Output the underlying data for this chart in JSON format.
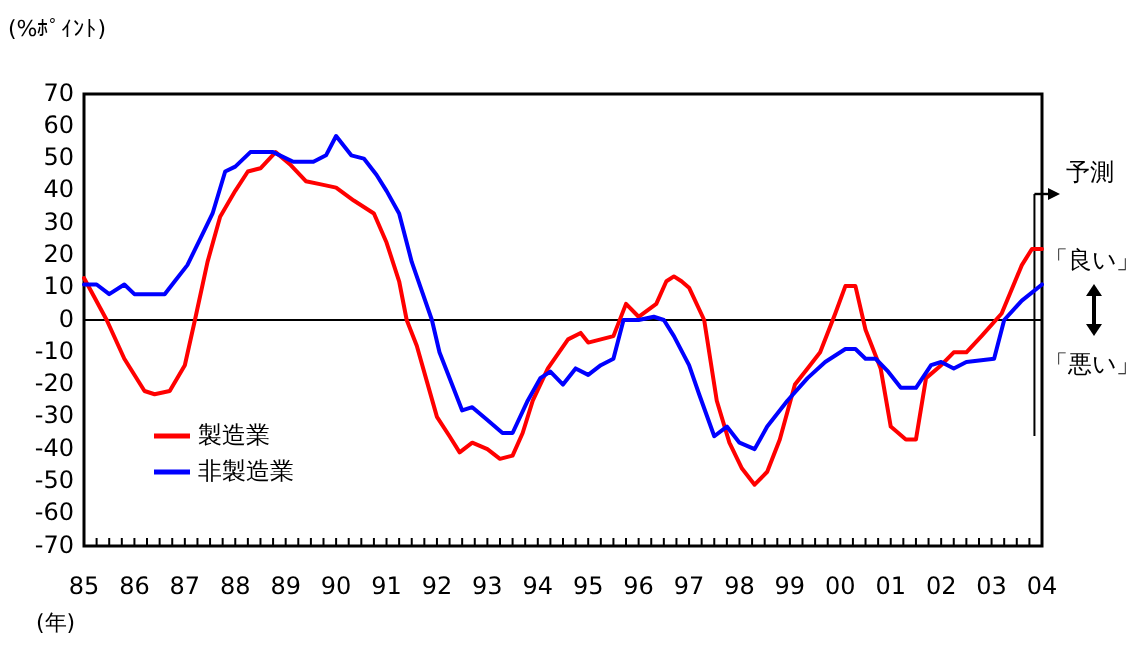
{
  "chart_data": {
    "type": "line",
    "ylabel": "(%ﾎﾟｲﾝﾄ)",
    "xlabel": "(年)",
    "xlim": [
      1985,
      2004
    ],
    "xticks": [
      {
        "value": 1985,
        "label": "85"
      },
      {
        "value": 1985.25,
        "label": null
      },
      {
        "value": 1985.5,
        "label": null
      },
      {
        "value": 1985.75,
        "label": null
      },
      {
        "value": 1986,
        "label": "86"
      },
      {
        "value": 1986.25,
        "label": null
      },
      {
        "value": 1986.5,
        "label": null
      },
      {
        "value": 1986.75,
        "label": null
      },
      {
        "value": 1987,
        "label": "87"
      },
      {
        "value": 1987.25,
        "label": null
      },
      {
        "value": 1987.5,
        "label": null
      },
      {
        "value": 1987.75,
        "label": null
      },
      {
        "value": 1988,
        "label": "88"
      },
      {
        "value": 1988.25,
        "label": null
      },
      {
        "value": 1988.5,
        "label": null
      },
      {
        "value": 1988.75,
        "label": null
      },
      {
        "value": 1989,
        "label": "89"
      },
      {
        "value": 1989.25,
        "label": null
      },
      {
        "value": 1989.5,
        "label": null
      },
      {
        "value": 1989.75,
        "label": null
      },
      {
        "value": 1990,
        "label": "90"
      },
      {
        "value": 1990.25,
        "label": null
      },
      {
        "value": 1990.5,
        "label": null
      },
      {
        "value": 1990.75,
        "label": null
      },
      {
        "value": 1991,
        "label": "91"
      },
      {
        "value": 1991.25,
        "label": null
      },
      {
        "value": 1991.5,
        "label": null
      },
      {
        "value": 1991.75,
        "label": null
      },
      {
        "value": 1992,
        "label": "92"
      },
      {
        "value": 1992.25,
        "label": null
      },
      {
        "value": 1992.5,
        "label": null
      },
      {
        "value": 1992.75,
        "label": null
      },
      {
        "value": 1993,
        "label": "93"
      },
      {
        "value": 1993.25,
        "label": null
      },
      {
        "value": 1993.5,
        "label": null
      },
      {
        "value": 1993.75,
        "label": null
      },
      {
        "value": 1994,
        "label": "94"
      },
      {
        "value": 1994.25,
        "label": null
      },
      {
        "value": 1994.5,
        "label": null
      },
      {
        "value": 1994.75,
        "label": null
      },
      {
        "value": 1995,
        "label": "95"
      },
      {
        "value": 1995.25,
        "label": null
      },
      {
        "value": 1995.5,
        "label": null
      },
      {
        "value": 1995.75,
        "label": null
      },
      {
        "value": 1996,
        "label": "96"
      },
      {
        "value": 1996.25,
        "label": null
      },
      {
        "value": 1996.5,
        "label": null
      },
      {
        "value": 1996.75,
        "label": null
      },
      {
        "value": 1997,
        "label": "97"
      },
      {
        "value": 1997.25,
        "label": null
      },
      {
        "value": 1997.5,
        "label": null
      },
      {
        "value": 1997.75,
        "label": null
      },
      {
        "value": 1998,
        "label": "98"
      },
      {
        "value": 1998.25,
        "label": null
      },
      {
        "value": 1998.5,
        "label": null
      },
      {
        "value": 1998.75,
        "label": null
      },
      {
        "value": 1999,
        "label": "99"
      },
      {
        "value": 1999.25,
        "label": null
      },
      {
        "value": 1999.5,
        "label": null
      },
      {
        "value": 1999.75,
        "label": null
      },
      {
        "value": 2000,
        "label": "00"
      },
      {
        "value": 2000.25,
        "label": null
      },
      {
        "value": 2000.5,
        "label": null
      },
      {
        "value": 2000.75,
        "label": null
      },
      {
        "value": 2001,
        "label": "01"
      },
      {
        "value": 2001.25,
        "label": null
      },
      {
        "value": 2001.5,
        "label": null
      },
      {
        "value": 2001.75,
        "label": null
      },
      {
        "value": 2002,
        "label": "02"
      },
      {
        "value": 2002.25,
        "label": null
      },
      {
        "value": 2002.5,
        "label": null
      },
      {
        "value": 2002.75,
        "label": null
      },
      {
        "value": 2003,
        "label": "03"
      },
      {
        "value": 2003.25,
        "label": null
      },
      {
        "value": 2003.5,
        "label": null
      },
      {
        "value": 2003.75,
        "label": null
      },
      {
        "value": 2004,
        "label": "04"
      }
    ],
    "ylim": [
      -70,
      70
    ],
    "yticks": [
      -70,
      -60,
      -50,
      -40,
      -30,
      -20,
      -10,
      0,
      10,
      20,
      30,
      40,
      50,
      60,
      70
    ],
    "grid": false,
    "legend": "bottom left",
    "line_style": "solid",
    "marker": "none",
    "series": [
      {
        "name": "製造業",
        "color": "#ff0000",
        "x": [
          1985,
          1985.45,
          1985.8,
          1986.2,
          1986.4,
          1986.7,
          1987,
          1987.2,
          1987.45,
          1987.7,
          1988,
          1988.25,
          1988.5,
          1988.8,
          1989.1,
          1989.4,
          1989.7,
          1990,
          1990.35,
          1990.75,
          1991,
          1991.25,
          1991.4,
          1991.6,
          1991.8,
          1992,
          1992.25,
          1992.45,
          1992.7,
          1993,
          1993.25,
          1993.5,
          1993.7,
          1993.9,
          1994.2,
          1994.6,
          1994.85,
          1995,
          1995.25,
          1995.5,
          1995.75,
          1996,
          1996.35,
          1996.55,
          1996.7,
          1996.85,
          1997,
          1997.3,
          1997.55,
          1997.8,
          1998.05,
          1998.3,
          1998.55,
          1998.8,
          1999.1,
          1999.35,
          1999.6,
          1999.9,
          2000.1,
          2000.3,
          2000.5,
          2000.8,
          2001,
          2001.3,
          2001.5,
          2001.7,
          2002,
          2002.25,
          2002.5,
          2002.8,
          2003.2,
          2003.6,
          2003.8,
          2004
        ],
        "values": [
          13,
          0,
          -12,
          -22,
          -23,
          -22,
          -14,
          0,
          18,
          32,
          40,
          46,
          47,
          52,
          48,
          43,
          42,
          41,
          37,
          33,
          24,
          12,
          0,
          -8,
          -19,
          -30,
          -36,
          -41,
          -38,
          -40,
          -43,
          -42,
          -35,
          -25,
          -15,
          -6,
          -4,
          -7,
          -6,
          -5,
          5,
          1,
          5,
          12,
          13.5,
          12,
          10,
          0,
          -25,
          -38,
          -46,
          -51,
          -47,
          -37,
          -20,
          -15,
          -10,
          2,
          10.5,
          10.5,
          -3,
          -15,
          -33,
          -37,
          -37,
          -18,
          -14,
          -10,
          -10,
          -5,
          2,
          17,
          22,
          22
        ]
      },
      {
        "name": "非製造業",
        "color": "#0000ff",
        "x": [
          1985,
          1985.25,
          1985.5,
          1985.8,
          1986,
          1986.3,
          1986.6,
          1986.8,
          1987.05,
          1987.3,
          1987.55,
          1987.8,
          1988,
          1988.3,
          1988.75,
          1989.15,
          1989.55,
          1989.8,
          1990,
          1990.3,
          1990.55,
          1990.8,
          1991,
          1991.25,
          1991.5,
          1991.9,
          1992.05,
          1992.35,
          1992.5,
          1992.7,
          1993,
          1993.3,
          1993.5,
          1993.8,
          1994.05,
          1994.25,
          1994.5,
          1994.75,
          1995,
          1995.25,
          1995.5,
          1995.7,
          1996,
          1996.3,
          1996.5,
          1996.7,
          1997,
          1997.2,
          1997.5,
          1997.75,
          1998,
          1998.3,
          1998.55,
          1998.95,
          1999.35,
          1999.7,
          2000.1,
          2000.3,
          2000.5,
          2000.7,
          2000.95,
          2001.2,
          2001.5,
          2001.8,
          2002,
          2002.25,
          2002.5,
          2003.05,
          2003.25,
          2003.6,
          2004
        ],
        "values": [
          11,
          11,
          8,
          11,
          8,
          8,
          8,
          12,
          17,
          25,
          33,
          46,
          47.5,
          52,
          52,
          49,
          49,
          51,
          57,
          51,
          50,
          45,
          40,
          33,
          18,
          0,
          -10,
          -22,
          -28,
          -27,
          -31,
          -35,
          -35,
          -25,
          -18,
          -16,
          -20,
          -15,
          -17,
          -14,
          -12,
          0,
          0,
          1,
          0,
          -5,
          -14,
          -23,
          -36,
          -33,
          -38,
          -40,
          -33,
          -25,
          -18,
          -13,
          -9,
          -9,
          -12,
          -12,
          -16,
          -21,
          -21,
          -14,
          -13,
          -15,
          -13,
          -12,
          0,
          6,
          11
        ]
      }
    ],
    "ref_lines": [
      {
        "axis": "y",
        "value": 0,
        "color": "#000000"
      },
      {
        "axis": "x",
        "value": 2003.85,
        "label": "予測",
        "color": "#000000"
      }
    ],
    "annotations": [
      "「良い」",
      "「悪い」"
    ]
  }
}
